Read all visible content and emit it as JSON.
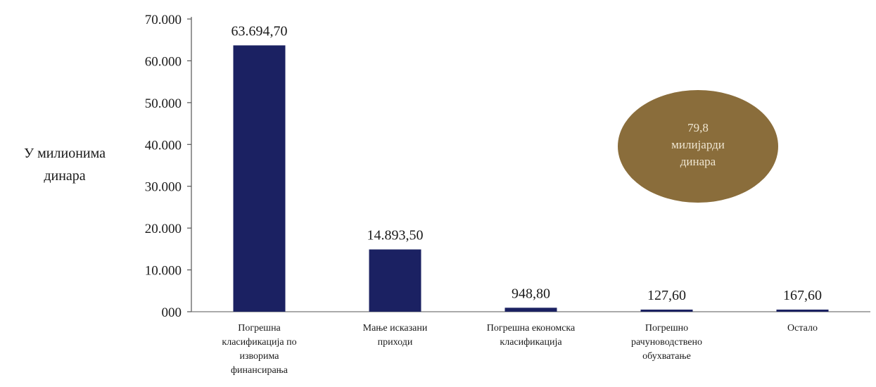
{
  "chart_data": {
    "type": "bar",
    "categories": [
      [
        "Погрешна",
        "класификација по",
        "изворима",
        "финансирања"
      ],
      [
        "Мање исказани",
        "приходи"
      ],
      [
        "Погрешна економска",
        "класификација"
      ],
      [
        "Погрешно",
        "рачуноводствено",
        "обухватање"
      ],
      [
        "Остало"
      ]
    ],
    "values": [
      63694.7,
      14893.5,
      948.8,
      127.6,
      167.6
    ],
    "value_labels": [
      "63.694,70",
      "14.893,50",
      "948,80",
      "127,60",
      "167,60"
    ],
    "ylim": [
      0,
      70000
    ],
    "yticks": [
      0,
      10000,
      20000,
      30000,
      40000,
      50000,
      60000,
      70000
    ],
    "ytick_labels": [
      "000",
      "10.000",
      "20.000",
      "30.000",
      "40.000",
      "50.000",
      "60.000",
      "70.000"
    ],
    "ylabel": [
      "У милионима",
      "динара"
    ],
    "xlabel": "",
    "title": "",
    "grid": false,
    "bar_color": "#1b2162",
    "annotation": {
      "lines": [
        "79,8",
        "милијарди",
        "динара"
      ],
      "fill_color": "#8a6d3b"
    }
  }
}
